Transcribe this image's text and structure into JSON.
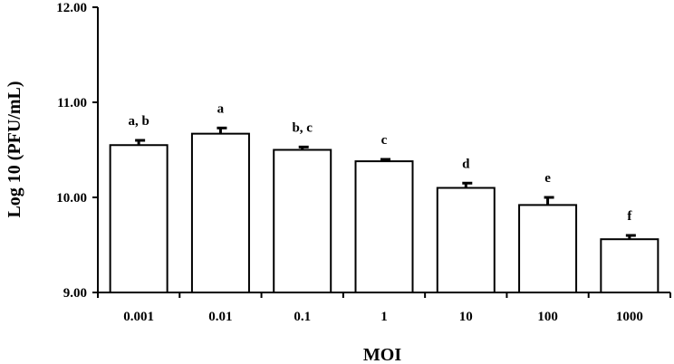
{
  "chart_data": {
    "type": "bar",
    "title": "",
    "xlabel": "MOI",
    "ylabel": "Log 10 (PFU/mL)",
    "categories": [
      "0.001",
      "0.01",
      "0.1",
      "1",
      "10",
      "100",
      "1000"
    ],
    "values": [
      10.55,
      10.67,
      10.5,
      10.38,
      10.1,
      9.92,
      9.56
    ],
    "errors": [
      0.05,
      0.06,
      0.03,
      0.02,
      0.05,
      0.08,
      0.04
    ],
    "significance_labels": [
      "a, b",
      "a",
      "b, c",
      "c",
      "d",
      "e",
      "f"
    ],
    "ylim": [
      9.0,
      12.0
    ],
    "yticks": [
      "9.00",
      "10.00",
      "11.00",
      "12.00"
    ],
    "grid": false,
    "bar_fill": "#ffffff",
    "bar_stroke": "#000000"
  }
}
